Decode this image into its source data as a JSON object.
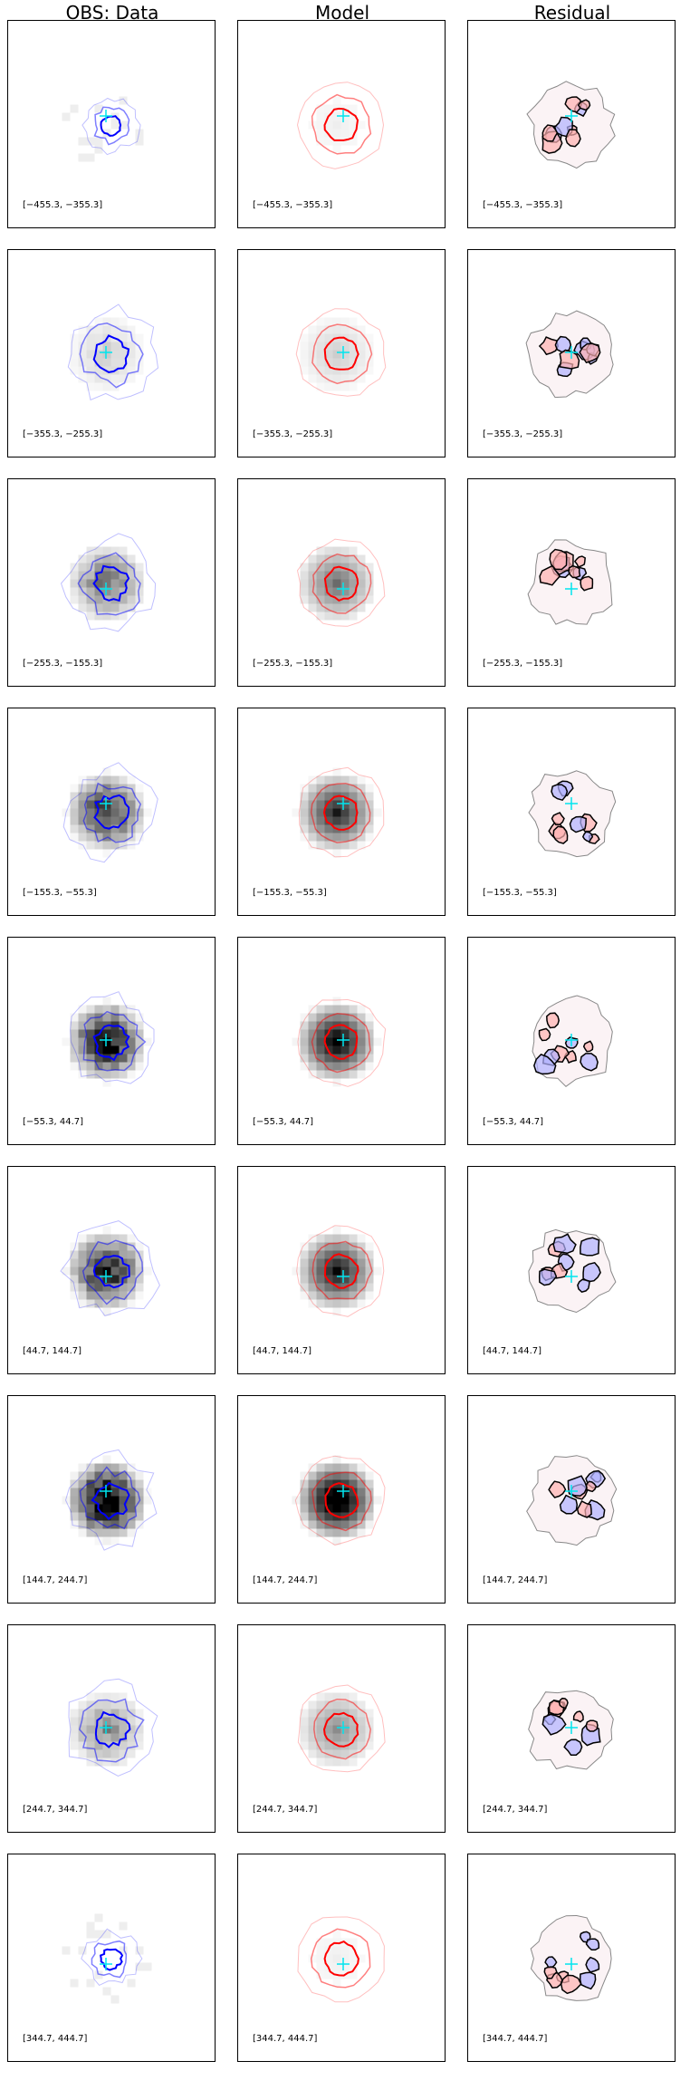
{
  "columns": [
    {
      "title": "OBS: Data",
      "kind": "data"
    },
    {
      "title": "Model",
      "kind": "model"
    },
    {
      "title": "Residual",
      "kind": "residual"
    }
  ],
  "chart_data": {
    "type": "heatmap",
    "colors": {
      "data_contour": "#0000ff",
      "model_contour": "#ff0000",
      "residual_contour": "#000000",
      "residual_pos": "#ffb0b0",
      "residual_neg": "#b0b0ff",
      "marker": "#00e5ee"
    },
    "rows": [
      {
        "label": "[−455.3, −355.3]",
        "intensity": 0.05,
        "data_sparse": true
      },
      {
        "label": "[−355.3, −255.3]",
        "intensity": 0.15,
        "data_sparse": false
      },
      {
        "label": "[−255.3, −155.3]",
        "intensity": 0.45,
        "data_sparse": false
      },
      {
        "label": "[−155.3, −55.3]",
        "intensity": 0.7,
        "data_sparse": false
      },
      {
        "label": "[−55.3, 44.7]",
        "intensity": 0.85,
        "data_sparse": false
      },
      {
        "label": "[44.7, 144.7]",
        "intensity": 0.75,
        "data_sparse": false
      },
      {
        "label": "[144.7, 244.7]",
        "intensity": 1.0,
        "data_sparse": false
      },
      {
        "label": "[244.7, 344.7]",
        "intensity": 0.35,
        "data_sparse": false
      },
      {
        "label": "[344.7, 444.7]",
        "intensity": 0.05,
        "data_sparse": true
      }
    ]
  }
}
